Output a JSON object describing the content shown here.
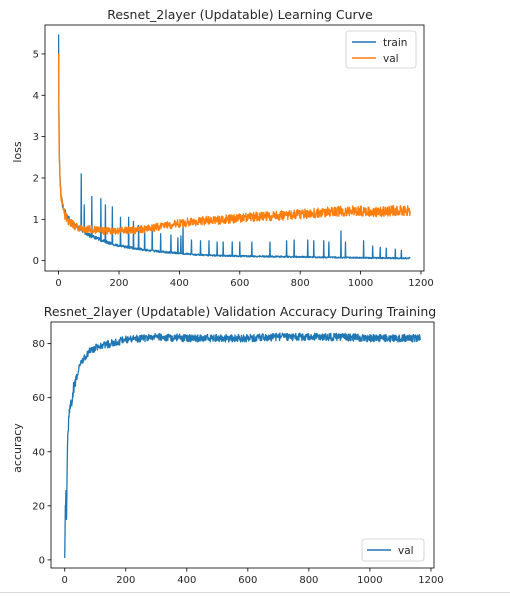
{
  "chart_data": [
    {
      "type": "line",
      "title": "Resnet_2layer (Updatable) Learning Curve",
      "xlabel": "",
      "ylabel": "loss",
      "xlim": [
        -45,
        1210
      ],
      "ylim": [
        -0.25,
        5.7
      ],
      "xticks": [
        "0",
        "200",
        "400",
        "600",
        "800",
        "1000",
        "1200"
      ],
      "yticks": [
        "0",
        "1",
        "2",
        "3",
        "4",
        "5"
      ],
      "legend": "top-right",
      "grid": false,
      "series": [
        {
          "name": "train",
          "color": "#1f77b4",
          "points": [
            [
              0,
              5.45
            ],
            [
              1,
              3.6
            ],
            [
              2,
              2.9
            ],
            [
              3,
              2.4
            ],
            [
              5,
              1.9
            ],
            [
              8,
              1.6
            ],
            [
              12,
              1.4
            ],
            [
              16,
              1.28
            ],
            [
              20,
              1.18
            ],
            [
              30,
              1.05
            ],
            [
              40,
              0.95
            ],
            [
              50,
              0.88
            ],
            [
              60,
              0.82
            ],
            [
              70,
              0.76
            ],
            [
              80,
              0.72
            ],
            [
              100,
              0.62
            ],
            [
              120,
              0.56
            ],
            [
              140,
              0.5
            ],
            [
              160,
              0.45
            ],
            [
              180,
              0.4
            ],
            [
              200,
              0.36
            ],
            [
              250,
              0.3
            ],
            [
              300,
              0.25
            ],
            [
              350,
              0.21
            ],
            [
              400,
              0.18
            ],
            [
              450,
              0.15
            ],
            [
              500,
              0.13
            ],
            [
              600,
              0.11
            ],
            [
              700,
              0.1
            ],
            [
              800,
              0.09
            ],
            [
              900,
              0.08
            ],
            [
              1000,
              0.07
            ],
            [
              1100,
              0.06
            ],
            [
              1165,
              0.06
            ]
          ],
          "spikes": [
            [
              75,
              2.1
            ],
            [
              85,
              1.35
            ],
            [
              110,
              1.55
            ],
            [
              140,
              1.5
            ],
            [
              155,
              1.35
            ],
            [
              178,
              1.3
            ],
            [
              205,
              1.05
            ],
            [
              232,
              1.05
            ],
            [
              248,
              0.95
            ],
            [
              265,
              0.85
            ],
            [
              285,
              0.8
            ],
            [
              310,
              0.8
            ],
            [
              338,
              0.65
            ],
            [
              372,
              0.62
            ],
            [
              395,
              0.55
            ],
            [
              405,
              0.6
            ],
            [
              412,
              0.9
            ],
            [
              440,
              0.5
            ],
            [
              470,
              0.48
            ],
            [
              498,
              0.48
            ],
            [
              525,
              0.45
            ],
            [
              545,
              0.45
            ],
            [
              575,
              0.45
            ],
            [
              600,
              0.45
            ],
            [
              640,
              0.45
            ],
            [
              700,
              0.45
            ],
            [
              755,
              0.48
            ],
            [
              780,
              0.5
            ],
            [
              825,
              0.5
            ],
            [
              845,
              0.48
            ],
            [
              878,
              0.48
            ],
            [
              895,
              0.45
            ],
            [
              935,
              0.72
            ],
            [
              950,
              0.45
            ],
            [
              1010,
              0.48
            ],
            [
              1040,
              0.35
            ],
            [
              1065,
              0.32
            ],
            [
              1085,
              0.3
            ],
            [
              1115,
              0.28
            ],
            [
              1135,
              0.25
            ]
          ]
        },
        {
          "name": "val",
          "color": "#ff7f0e",
          "points": [
            [
              0,
              5.0
            ],
            [
              1,
              3.4
            ],
            [
              2,
              2.75
            ],
            [
              3,
              2.3
            ],
            [
              5,
              1.85
            ],
            [
              8,
              1.55
            ],
            [
              12,
              1.35
            ],
            [
              16,
              1.22
            ],
            [
              20,
              1.12
            ],
            [
              30,
              1.0
            ],
            [
              40,
              0.92
            ],
            [
              50,
              0.86
            ],
            [
              60,
              0.82
            ],
            [
              80,
              0.78
            ],
            [
              100,
              0.76
            ],
            [
              150,
              0.72
            ],
            [
              200,
              0.72
            ],
            [
              250,
              0.74
            ],
            [
              300,
              0.78
            ],
            [
              350,
              0.84
            ],
            [
              400,
              0.9
            ],
            [
              450,
              0.95
            ],
            [
              500,
              0.98
            ],
            [
              550,
              1.0
            ],
            [
              600,
              1.03
            ],
            [
              650,
              1.06
            ],
            [
              700,
              1.08
            ],
            [
              750,
              1.1
            ],
            [
              800,
              1.13
            ],
            [
              850,
              1.15
            ],
            [
              900,
              1.18
            ],
            [
              950,
              1.2
            ],
            [
              1000,
              1.2
            ],
            [
              1050,
              1.18
            ],
            [
              1100,
              1.2
            ],
            [
              1165,
              1.22
            ]
          ]
        }
      ]
    },
    {
      "type": "line",
      "title": "Resnet_2layer (Updatable) Validation Accuracy During Training",
      "xlabel": "",
      "ylabel": "accuracy",
      "xlim": [
        -45,
        1210
      ],
      "ylim": [
        -3,
        88
      ],
      "xticks": [
        "0",
        "200",
        "400",
        "600",
        "800",
        "1000",
        "1200"
      ],
      "yticks": [
        "0",
        "20",
        "40",
        "60",
        "80"
      ],
      "legend": "bottom-right",
      "grid": false,
      "series": [
        {
          "name": "val",
          "color": "#1f77b4",
          "points": [
            [
              0,
              0.5
            ],
            [
              2,
              18
            ],
            [
              4,
              27
            ],
            [
              6,
              17
            ],
            [
              8,
              35
            ],
            [
              10,
              45
            ],
            [
              14,
              55
            ],
            [
              18,
              58
            ],
            [
              22,
              57
            ],
            [
              26,
              62
            ],
            [
              30,
              64
            ],
            [
              40,
              68
            ],
            [
              50,
              72
            ],
            [
              60,
              74
            ],
            [
              80,
              77
            ],
            [
              100,
              78.5
            ],
            [
              150,
              80
            ],
            [
              200,
              81.5
            ],
            [
              250,
              82
            ],
            [
              300,
              82.5
            ],
            [
              400,
              82
            ],
            [
              500,
              82
            ],
            [
              600,
              82
            ],
            [
              700,
              82.5
            ],
            [
              800,
              82.5
            ],
            [
              900,
              82.5
            ],
            [
              1000,
              82
            ],
            [
              1100,
              82
            ],
            [
              1165,
              82
            ]
          ]
        }
      ]
    }
  ]
}
